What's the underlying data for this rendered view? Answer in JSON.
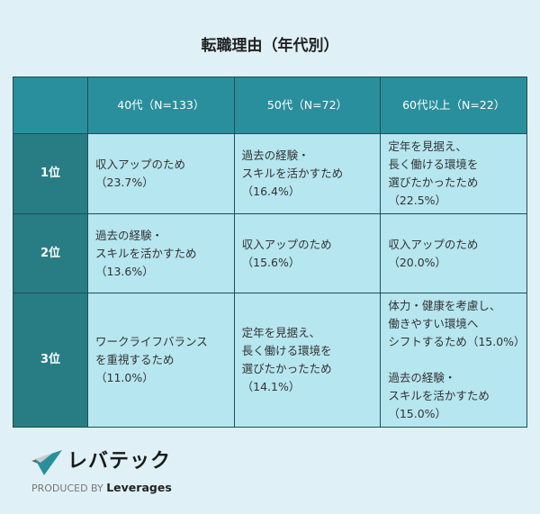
{
  "title": "転職理由（年代別）",
  "columns": [
    "40代（N=133）",
    "50代（N=72）",
    "60代以上（N=22）"
  ],
  "rows": [
    {
      "rank": "1位",
      "cells": [
        "収入アップのため\n（23.7%）",
        "過去の経験・\nスキルを活かすため\n（16.4%）",
        "定年を見据え、\n長く働ける環境を\n選びたかったため\n（22.5%）"
      ]
    },
    {
      "rank": "2位",
      "cells": [
        "過去の経験・\nスキルを活かすため\n（13.6%）",
        "収入アップのため\n（15.6%）",
        "収入アップのため\n（20.0%）"
      ]
    },
    {
      "rank": "3位",
      "cells": [
        "ワークライフバランス\nを重視するため\n（11.0%）",
        "定年を見据え、\n長く働ける環境を\n選びたかったため\n（14.1%）",
        "体力・健康を考慮し、\n働きやすい環境へ\nシフトするため（15.0%）\n\n過去の経験・\nスキルを活かすため\n（15.0%）"
      ]
    }
  ],
  "logo": {
    "brand": "レバテック",
    "produced_by": "PRODUCED BY",
    "company": "Leverages"
  },
  "colors": {
    "background": "#dff1f6",
    "header": "#2a8f9c",
    "rank": "#287d85",
    "cell": "#b6e6ef"
  }
}
